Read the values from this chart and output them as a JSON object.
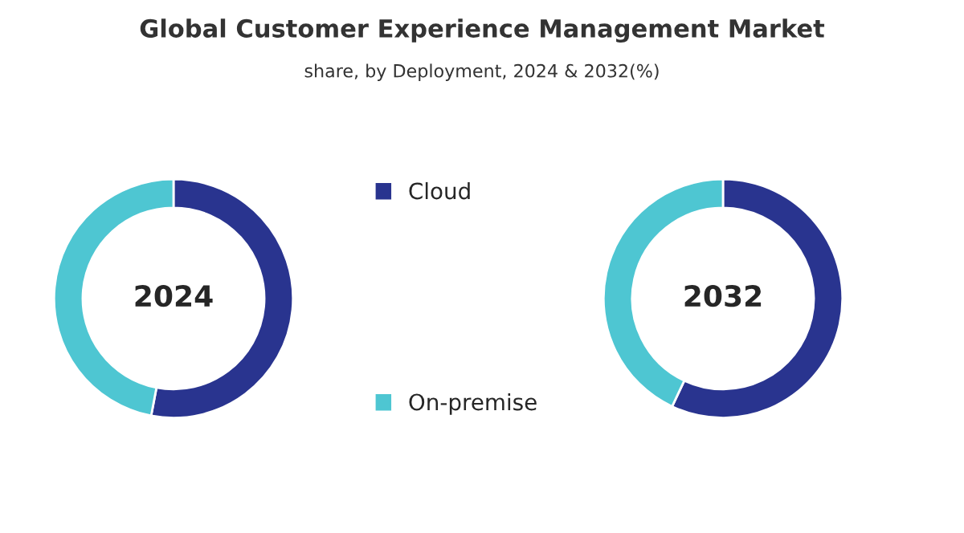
{
  "chart_data": [
    {
      "type": "donut",
      "title": "Global Customer Experience Management Market",
      "subtitle": "share, by Deployment, 2024 & 2032(%)",
      "categories": [
        "Cloud",
        "On-premise"
      ],
      "values": [
        53,
        47
      ],
      "colors": [
        "#29348f",
        "#4ec6d2"
      ],
      "annotations": [
        "2024"
      ],
      "legend": "right"
    },
    {
      "type": "donut",
      "categories": [
        null,
        null
      ],
      "values": [
        57,
        43
      ],
      "colors": [
        "#29348f",
        "#4ec6d2"
      ],
      "annotations": [
        "2032"
      ]
    }
  ]
}
